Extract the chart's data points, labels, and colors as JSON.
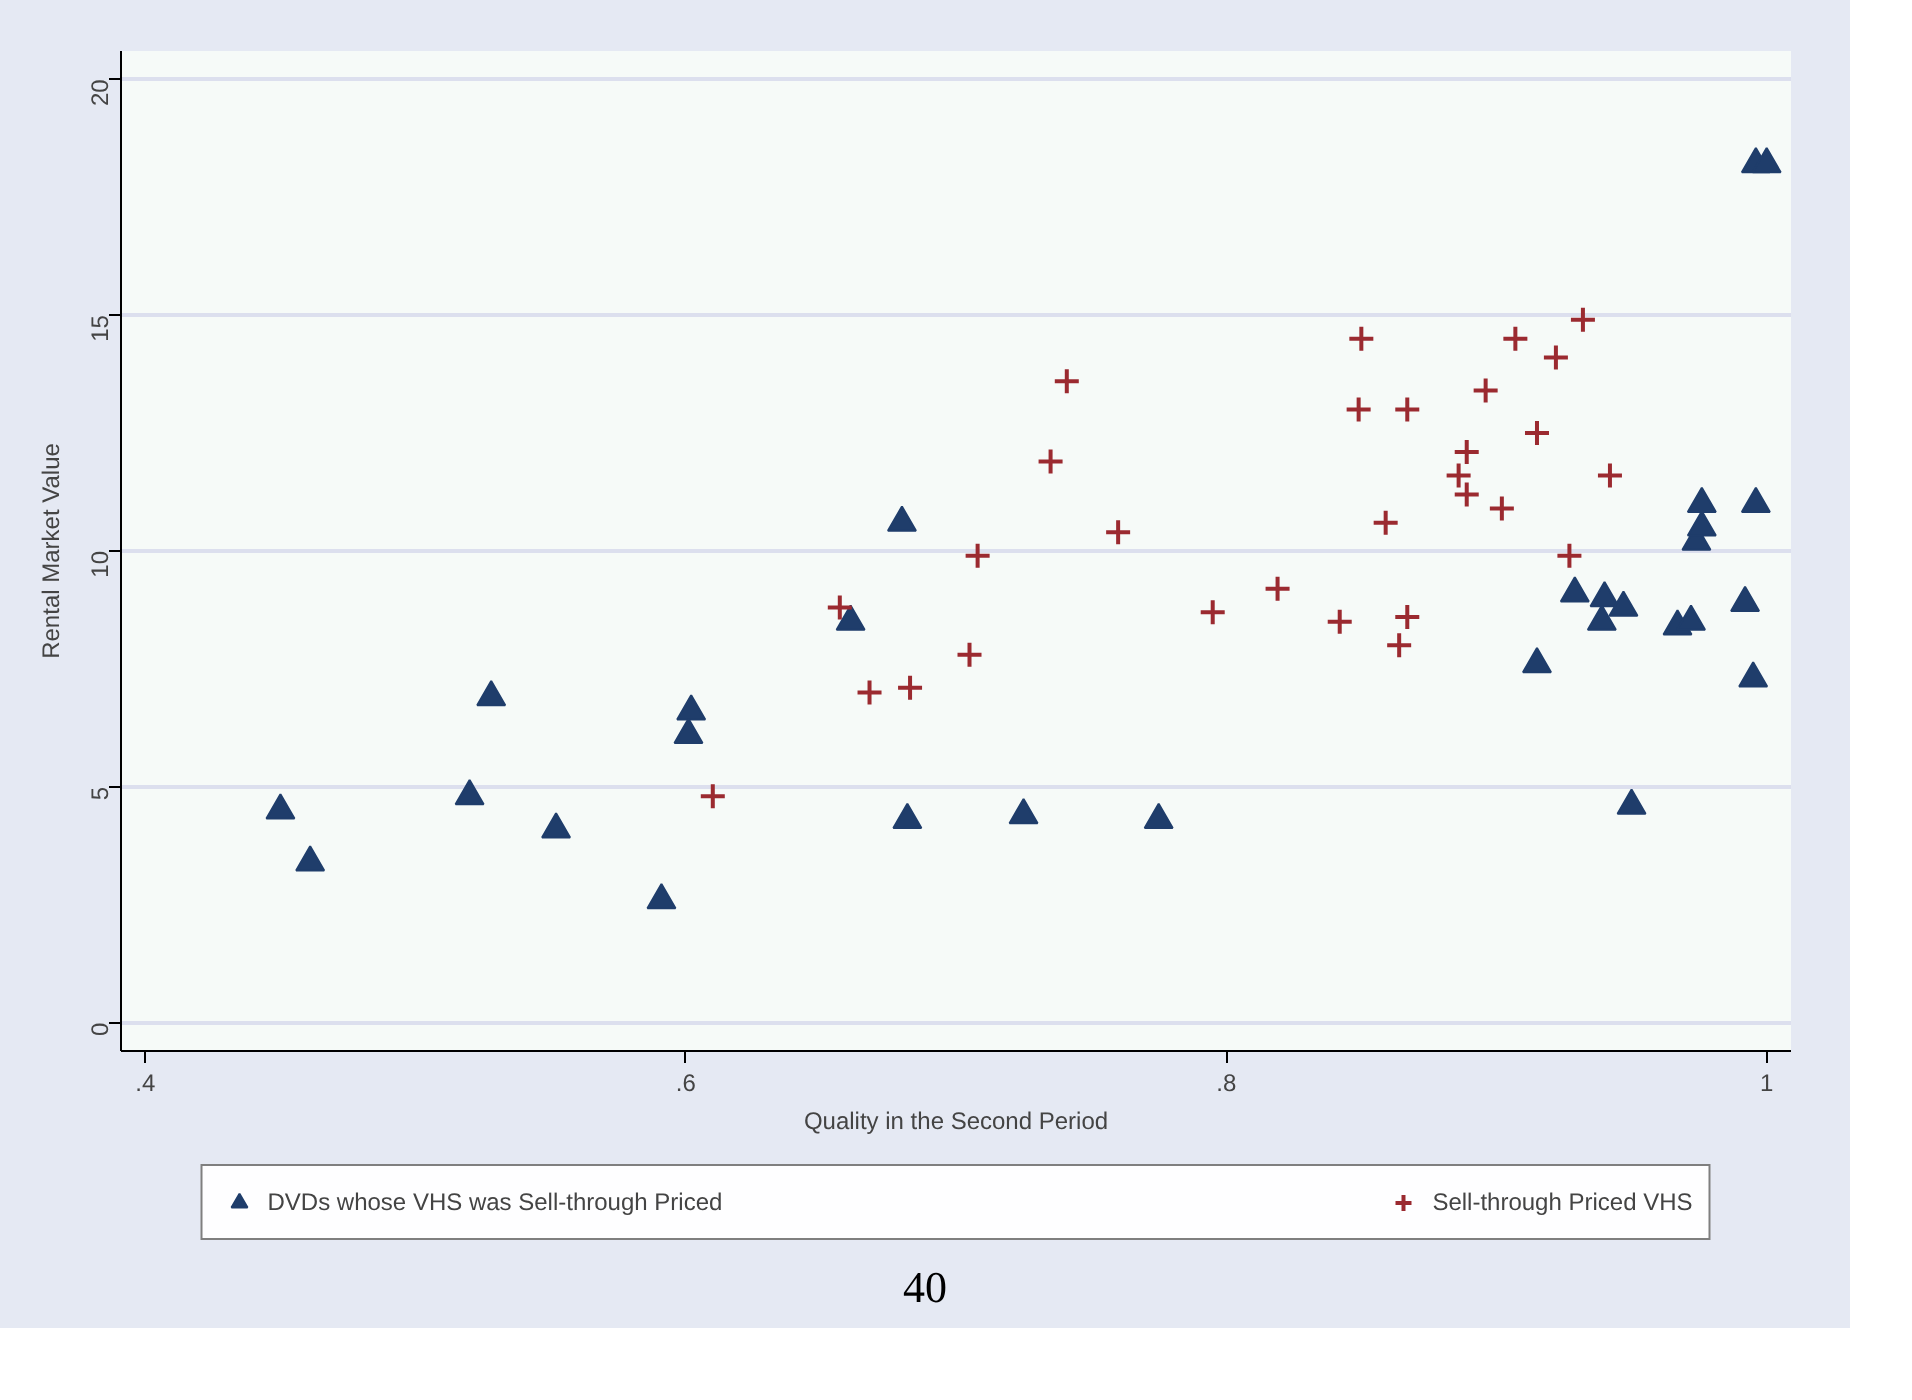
{
  "chart_data": {
    "type": "scatter",
    "xlabel": "Quality in the Second Period",
    "ylabel": "Rental Market Value",
    "xlim": [
      0.391,
      1.009
    ],
    "ylim": [
      -0.6,
      20.6
    ],
    "xticks": [
      {
        "value": 0.4,
        "label": ".4"
      },
      {
        "value": 0.6,
        "label": ".6"
      },
      {
        "value": 0.8,
        "label": ".8"
      },
      {
        "value": 1,
        "label": "1"
      }
    ],
    "yticks": [
      0,
      5,
      10,
      15,
      20
    ],
    "grid": "y",
    "legend": "bottom",
    "series": [
      {
        "name": "DVDs whose VHS was Sell-through Priced",
        "color": "#1f3d6b",
        "marker": "triangle",
        "x": [
          0.45,
          0.461,
          0.52,
          0.528,
          0.552,
          0.591,
          0.602,
          0.601,
          0.661,
          0.68,
          0.682,
          0.725,
          0.775,
          0.915,
          0.929,
          0.939,
          0.94,
          0.947,
          0.95,
          0.967,
          0.972,
          0.974,
          0.976,
          0.976,
          0.992,
          0.995,
          0.996,
          1.0,
          0.996
        ],
        "values": [
          4.5,
          3.4,
          4.8,
          6.9,
          4.1,
          2.6,
          6.6,
          6.1,
          8.5,
          10.6,
          4.3,
          4.4,
          4.3,
          7.6,
          9.1,
          8.5,
          9.0,
          8.8,
          4.6,
          8.4,
          8.5,
          10.2,
          10.5,
          11.0,
          8.9,
          7.3,
          18.2,
          18.2,
          11.0
        ]
      },
      {
        "name": "Sell-through Priced VHS",
        "color": "#9b2a30",
        "marker": "cross",
        "x": [
          0.657,
          0.668,
          0.683,
          0.705,
          0.708,
          0.735,
          0.741,
          0.76,
          0.795,
          0.819,
          0.842,
          0.849,
          0.85,
          0.859,
          0.864,
          0.867,
          0.867,
          0.886,
          0.889,
          0.889,
          0.896,
          0.902,
          0.907,
          0.915,
          0.922,
          0.927,
          0.932,
          0.942,
          0.61
        ],
        "values": [
          8.8,
          7.0,
          7.1,
          7.8,
          9.9,
          11.9,
          13.6,
          10.4,
          8.7,
          9.2,
          8.5,
          13.0,
          14.5,
          10.6,
          8.0,
          8.6,
          13.0,
          11.6,
          12.1,
          11.2,
          13.4,
          10.9,
          14.5,
          12.5,
          14.1,
          9.9,
          14.9,
          11.6,
          4.8
        ]
      }
    ],
    "annotations": [
      "40"
    ]
  }
}
